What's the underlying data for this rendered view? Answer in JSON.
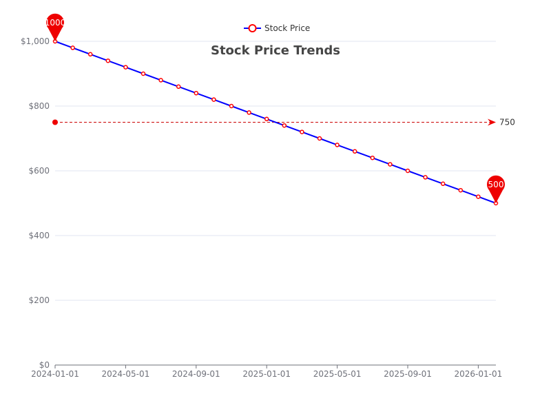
{
  "chart_data": {
    "type": "line",
    "title": "Stock Price Trends",
    "legend": {
      "entries": [
        "Stock Price"
      ],
      "placement": "top-center"
    },
    "x": [
      "2024-01-01",
      "2024-02-01",
      "2024-03-01",
      "2024-04-01",
      "2024-05-01",
      "2024-06-01",
      "2024-07-01",
      "2024-08-01",
      "2024-09-01",
      "2024-10-01",
      "2024-11-01",
      "2024-12-01",
      "2025-01-01",
      "2025-02-01",
      "2025-03-01",
      "2025-04-01",
      "2025-05-01",
      "2025-06-01",
      "2025-07-01",
      "2025-08-01",
      "2025-09-01",
      "2025-10-01",
      "2025-11-01",
      "2025-12-01",
      "2026-01-01",
      "2026-02-01"
    ],
    "x_tick_labels": [
      "2024-01-01",
      "2024-05-01",
      "2024-09-01",
      "2025-01-01",
      "2025-05-01",
      "2025-09-01",
      "2026-01-01"
    ],
    "x_tick_indices": [
      0,
      4,
      8,
      12,
      16,
      20,
      24
    ],
    "series": [
      {
        "name": "Stock Price",
        "values": [
          1000,
          980,
          960,
          940,
          920,
          900,
          880,
          860,
          840,
          820,
          800,
          780,
          760,
          740,
          720,
          700,
          680,
          660,
          640,
          620,
          600,
          580,
          560,
          540,
          520,
          500
        ]
      }
    ],
    "ylim": [
      0,
      1000
    ],
    "y_ticks": [
      0,
      200,
      400,
      600,
      800,
      1000
    ],
    "y_tick_labels": [
      "$0",
      "$200",
      "$400",
      "$600",
      "$800",
      "$1,000"
    ],
    "mark_points": [
      {
        "name": "max",
        "index": 0,
        "value": 1000,
        "label": "1000"
      },
      {
        "name": "min",
        "index": 25,
        "value": 500,
        "label": "500"
      }
    ],
    "mark_line": {
      "value": 750,
      "label": "750"
    },
    "grid": true,
    "xlabel": "",
    "ylabel": "",
    "colors": {
      "line": "#0000ff",
      "point_stroke": "#ff0000",
      "point_fill": "#ffffff",
      "mark": "#ee0000",
      "mark_line": "#cc0000"
    }
  }
}
